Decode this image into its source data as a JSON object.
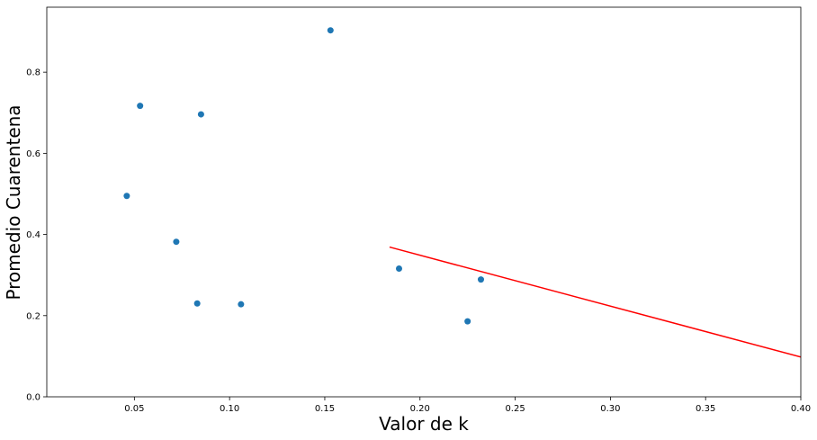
{
  "chart_data": {
    "type": "scatter",
    "xlabel": "Valor de k",
    "ylabel": "Promedio Cuarentena",
    "xlim": [
      0.004,
      0.4
    ],
    "ylim": [
      0.0,
      0.96
    ],
    "xticks": [
      0.05,
      0.1,
      0.15,
      0.2,
      0.25,
      0.3,
      0.35,
      0.4
    ],
    "xtick_labels": [
      "0.05",
      "0.10",
      "0.15",
      "0.20",
      "0.25",
      "0.30",
      "0.35",
      "0.40"
    ],
    "yticks": [
      0.0,
      0.2,
      0.4,
      0.6,
      0.8
    ],
    "ytick_labels": [
      "0.0",
      "0.2",
      "0.4",
      "0.6",
      "0.8"
    ],
    "grid": false,
    "colors": {
      "points": "#1f77b4",
      "line": "#ff0000",
      "axes": "#000000"
    },
    "points": [
      {
        "x": 0.046,
        "y": 0.495
      },
      {
        "x": 0.053,
        "y": 0.717
      },
      {
        "x": 0.072,
        "y": 0.382
      },
      {
        "x": 0.083,
        "y": 0.23
      },
      {
        "x": 0.085,
        "y": 0.696
      },
      {
        "x": 0.106,
        "y": 0.228
      },
      {
        "x": 0.153,
        "y": 0.903
      },
      {
        "x": 0.189,
        "y": 0.316
      },
      {
        "x": 0.225,
        "y": 0.186
      },
      {
        "x": 0.232,
        "y": 0.289
      }
    ],
    "line": {
      "x": [
        0.184,
        0.4
      ],
      "y": [
        0.369,
        0.098
      ]
    }
  }
}
